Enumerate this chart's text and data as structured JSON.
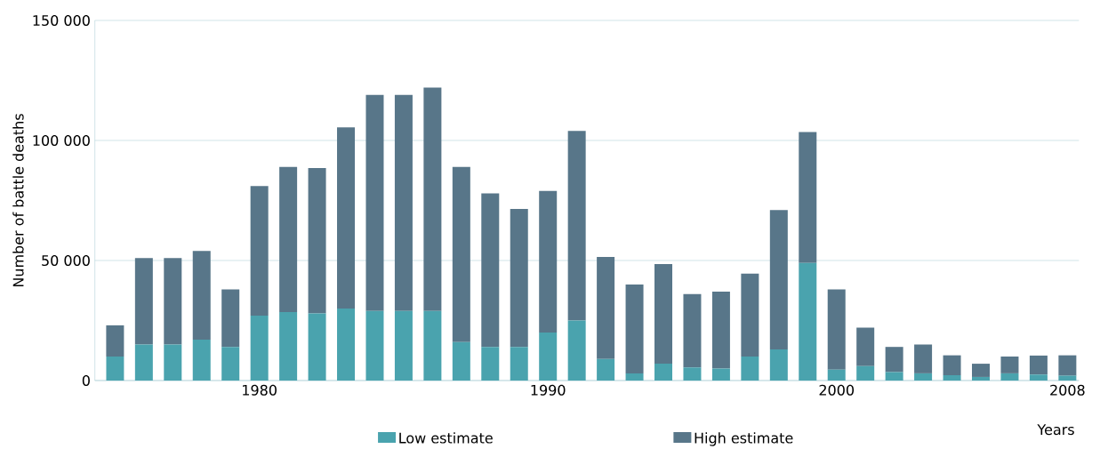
{
  "chart_data": {
    "type": "bar",
    "stacked": true,
    "xlabel": "Years",
    "ylabel": "Number of battle deaths",
    "categories": [
      null,
      null,
      null,
      null,
      null,
      "1980",
      null,
      null,
      null,
      null,
      null,
      null,
      null,
      null,
      null,
      "1990",
      null,
      null,
      null,
      null,
      null,
      null,
      null,
      null,
      null,
      "2000",
      null,
      null,
      null,
      null,
      null,
      null,
      null,
      "2008"
    ],
    "series": [
      {
        "name": "Low estimate",
        "color": "#4aa3ae",
        "values": [
          10000,
          15000,
          15000,
          17000,
          14000,
          27000,
          28500,
          28000,
          30000,
          29000,
          29000,
          29000,
          16000,
          14000,
          14000,
          20000,
          25000,
          9000,
          3000,
          7000,
          5500,
          5000,
          10000,
          13000,
          49000,
          4500,
          6000,
          3500,
          3000,
          2200,
          1500,
          3000,
          2500,
          2000
        ]
      },
      {
        "name": "High estimate",
        "color": "#587689",
        "values": [
          13000,
          36000,
          36000,
          37000,
          24000,
          54000,
          60500,
          60500,
          75500,
          90000,
          90000,
          93000,
          73000,
          64000,
          57500,
          59000,
          79000,
          42500,
          37000,
          41500,
          30500,
          32000,
          34500,
          58000,
          54500,
          33500,
          16000,
          10500,
          12000,
          8300,
          5500,
          7000,
          7900,
          8500
        ]
      }
    ],
    "ylim": [
      0,
      150000
    ],
    "yticks": [
      0,
      {
        "value": 50000,
        "label": "50 000"
      },
      {
        "value": 100000,
        "label": "100 000"
      },
      {
        "value": 150000,
        "label": "150 000"
      }
    ],
    "grid": "y",
    "legend": "bottom"
  }
}
